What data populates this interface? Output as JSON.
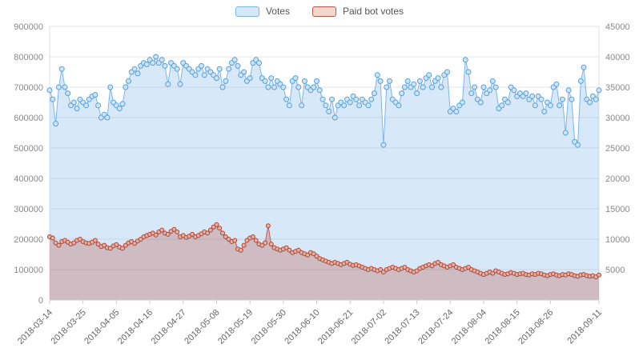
{
  "legend": {
    "items": [
      {
        "label": "Votes",
        "fill": "#d6e9f8",
        "border": "#7cb5ec"
      },
      {
        "label": "Paid bot votes",
        "fill": "#f3d7cc",
        "border": "#c0564a"
      }
    ]
  },
  "chart_data": {
    "type": "area",
    "title": "",
    "grid": true,
    "legend_position": "top-center",
    "x_tick_labels": [
      "2018-03-14",
      "2018-03-25",
      "2018-04-05",
      "2018-04-16",
      "2018-04-27",
      "2018-05-08",
      "2018-05-19",
      "2018-05-30",
      "2018-06-10",
      "2018-06-21",
      "2018-07-02",
      "2018-07-13",
      "2018-07-24",
      "2018-08-04",
      "2018-08-15",
      "2018-08-26",
      "2018-09-11"
    ],
    "x_tick_indices": [
      0,
      11,
      22,
      33,
      44,
      55,
      66,
      77,
      88,
      99,
      110,
      121,
      132,
      143,
      154,
      165,
      181
    ],
    "y_left": {
      "min": 0,
      "max": 900000,
      "tick_interval": 100000,
      "labels": [
        "0",
        "100000",
        "200000",
        "300000",
        "400000",
        "500000",
        "600000",
        "700000",
        "800000",
        "900000"
      ]
    },
    "y_right": {
      "min": 0,
      "max": 45000,
      "tick_interval": 5000,
      "labels": [
        "5000",
        "10000",
        "15000",
        "20000",
        "25000",
        "30000",
        "35000",
        "40000",
        "45000"
      ]
    },
    "series": [
      {
        "name": "Votes",
        "axis": "left",
        "color": "#7cb5ec",
        "fill": "rgba(124,181,236,0.30)",
        "marker_fill": "#cde4f7",
        "marker_stroke": "#58a0d8",
        "marker_radius": 3,
        "values": [
          690000,
          660000,
          580000,
          700000,
          760000,
          700000,
          680000,
          640000,
          650000,
          630000,
          660000,
          650000,
          640000,
          660000,
          670000,
          675000,
          640000,
          600000,
          610000,
          600000,
          700000,
          650000,
          640000,
          630000,
          645000,
          700000,
          720000,
          750000,
          760000,
          745000,
          770000,
          780000,
          775000,
          790000,
          780000,
          800000,
          780000,
          790000,
          770000,
          710000,
          780000,
          770000,
          760000,
          710000,
          780000,
          770000,
          760000,
          750000,
          740000,
          760000,
          770000,
          740000,
          760000,
          750000,
          740000,
          730000,
          760000,
          700000,
          720000,
          760000,
          780000,
          790000,
          770000,
          740000,
          750000,
          720000,
          730000,
          780000,
          790000,
          780000,
          730000,
          720000,
          700000,
          730000,
          700000,
          720000,
          710000,
          700000,
          660000,
          640000,
          720000,
          730000,
          700000,
          640000,
          720000,
          700000,
          690000,
          700000,
          720000,
          690000,
          660000,
          640000,
          620000,
          660000,
          600000,
          640000,
          650000,
          640000,
          660000,
          650000,
          670000,
          660000,
          640000,
          660000,
          650000,
          640000,
          660000,
          680000,
          740000,
          720000,
          510000,
          700000,
          720000,
          660000,
          650000,
          640000,
          680000,
          700000,
          720000,
          700000,
          710000,
          680000,
          720000,
          700000,
          730000,
          740000,
          700000,
          720000,
          730000,
          700000,
          740000,
          750000,
          620000,
          630000,
          620000,
          640000,
          650000,
          790000,
          750000,
          680000,
          700000,
          660000,
          650000,
          700000,
          680000,
          690000,
          720000,
          700000,
          630000,
          640000,
          660000,
          650000,
          700000,
          690000,
          670000,
          680000,
          670000,
          680000,
          660000,
          670000,
          640000,
          670000,
          660000,
          620000,
          650000,
          640000,
          700000,
          710000,
          640000,
          660000,
          550000,
          690000,
          660000,
          520000,
          510000,
          720000,
          765000,
          660000,
          650000,
          670000,
          660000,
          690000
        ]
      },
      {
        "name": "Paid bot votes",
        "axis": "right",
        "color": "#bf5b4d",
        "fill": "rgba(191,91,77,0.32)",
        "marker_fill": "#e8b0a0",
        "marker_stroke": "#a6453a",
        "marker_radius": 2.5,
        "values": [
          10400,
          10200,
          9400,
          9000,
          9600,
          9800,
          9500,
          9200,
          9400,
          9800,
          10000,
          9600,
          9400,
          9300,
          9500,
          9800,
          9200,
          8800,
          9000,
          8600,
          8500,
          8900,
          9100,
          8700,
          8500,
          9000,
          9400,
          9600,
          9300,
          9700,
          10000,
          10400,
          10600,
          10800,
          11000,
          10700,
          11200,
          11500,
          11000,
          10800,
          11300,
          11600,
          11200,
          10400,
          10600,
          10300,
          10500,
          10800,
          10400,
          10600,
          10900,
          11200,
          11000,
          11500,
          12000,
          12400,
          11800,
          11000,
          10400,
          10000,
          9600,
          9800,
          8400,
          8200,
          9000,
          9800,
          10200,
          10400,
          9800,
          9200,
          9000,
          9400,
          12200,
          9200,
          8600,
          8400,
          8200,
          8400,
          8600,
          8200,
          7800,
          8000,
          8200,
          7800,
          7600,
          7400,
          7800,
          7600,
          7200,
          6800,
          6600,
          6400,
          6200,
          6000,
          6200,
          6000,
          5800,
          6000,
          6200,
          5900,
          5700,
          5800,
          5600,
          5400,
          5200,
          5000,
          5200,
          5000,
          4800,
          5000,
          4600,
          5000,
          5200,
          5400,
          5200,
          5000,
          5200,
          5400,
          5000,
          4800,
          4600,
          4800,
          5200,
          5400,
          5600,
          5800,
          5600,
          6000,
          6200,
          5800,
          5600,
          5400,
          5600,
          5800,
          5400,
          5200,
          5000,
          5200,
          5400,
          5000,
          4800,
          4600,
          4400,
          4200,
          4400,
          4600,
          4400,
          4800,
          4600,
          4400,
          4200,
          4300,
          4500,
          4400,
          4200,
          4300,
          4400,
          4200,
          4100,
          4300,
          4200,
          4400,
          4300,
          4100,
          4000,
          4200,
          4300,
          4100,
          4000,
          4200,
          4100,
          4300,
          4200,
          4000,
          3900,
          4100,
          4200,
          4000,
          3900,
          4000,
          3800,
          4100
        ]
      }
    ]
  }
}
